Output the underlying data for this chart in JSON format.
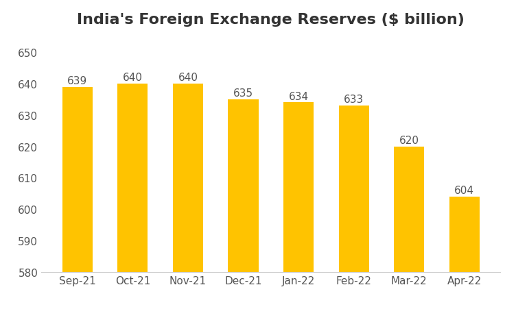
{
  "title": "India's Foreign Exchange Reserves ($ billion)",
  "categories": [
    "Sep-21",
    "Oct-21",
    "Nov-21",
    "Dec-21",
    "Jan-22",
    "Feb-22",
    "Mar-22",
    "Apr-22"
  ],
  "values": [
    639,
    640,
    640,
    635,
    634,
    633,
    620,
    604
  ],
  "bar_color": "#FFC300",
  "label_color": "#555555",
  "title_fontsize": 16,
  "label_fontsize": 11,
  "tick_fontsize": 11,
  "ylim": [
    580,
    655
  ],
  "yticks": [
    580,
    590,
    600,
    610,
    620,
    630,
    640,
    650
  ],
  "bar_bottom": 580,
  "background_color": "#ffffff",
  "bar_width": 0.55,
  "title_color": "#333333"
}
